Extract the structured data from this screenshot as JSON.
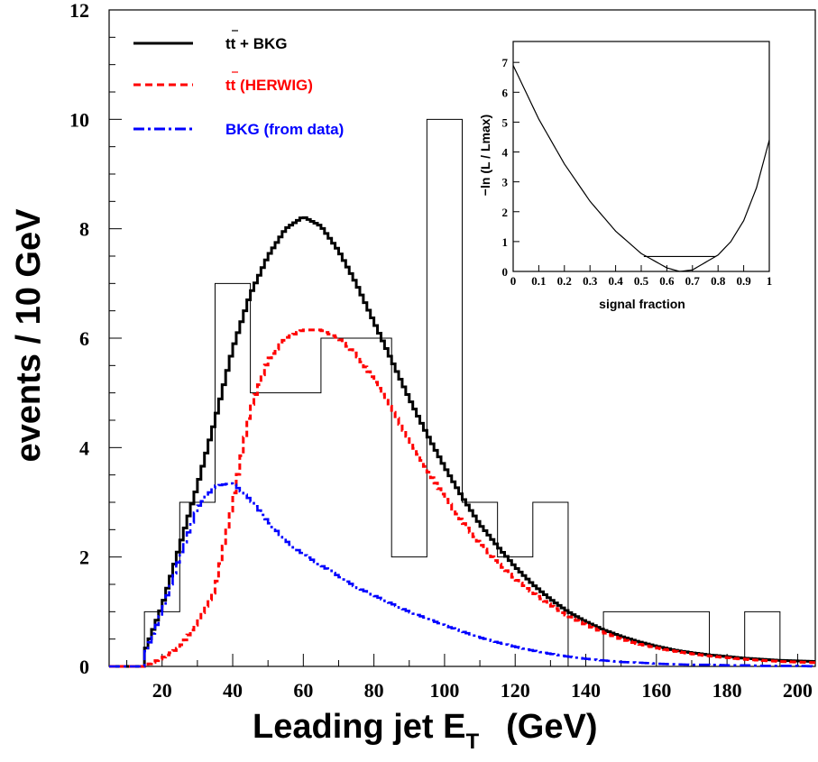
{
  "chart_data": [
    {
      "type": "line",
      "title": "",
      "xlabel": "Leading jet E",
      "xlabel_sub": "T",
      "xlabel_unit": "(GeV)",
      "ylabel": "events / 10 GeV",
      "xlim": [
        5,
        205
      ],
      "ylim": [
        0,
        12
      ],
      "xticks": [
        "20",
        "40",
        "60",
        "80",
        "100",
        "120",
        "140",
        "160",
        "180",
        "200"
      ],
      "yticks": [
        "0",
        "2",
        "4",
        "6",
        "8",
        "10",
        "12"
      ],
      "legend_position": "top-left",
      "histogram": {
        "edges": [
          15,
          25,
          35,
          45,
          55,
          65,
          75,
          85,
          95,
          105,
          115,
          125,
          135,
          145,
          155,
          165,
          175,
          185,
          195
        ],
        "counts": [
          1,
          3,
          7,
          5,
          5,
          6,
          6,
          2,
          10,
          3,
          2,
          3,
          0,
          1,
          1,
          1,
          0,
          1
        ]
      },
      "x": [
        15,
        20,
        25,
        30,
        35,
        40,
        45,
        50,
        55,
        60,
        65,
        70,
        75,
        80,
        85,
        90,
        95,
        100,
        105,
        110,
        115,
        120,
        125,
        130,
        135,
        140,
        145,
        150,
        155,
        160,
        165,
        170,
        175,
        180,
        185,
        190,
        195,
        200,
        205
      ],
      "series": [
        {
          "name": "tt + BKG",
          "color": "#000000",
          "style": "solid",
          "values": [
            0.25,
            1.1,
            2.2,
            3.3,
            4.5,
            5.8,
            6.8,
            7.5,
            8.0,
            8.22,
            8.05,
            7.6,
            7.0,
            6.3,
            5.6,
            4.9,
            4.25,
            3.65,
            3.1,
            2.6,
            2.2,
            1.82,
            1.5,
            1.23,
            1.0,
            0.82,
            0.67,
            0.55,
            0.45,
            0.37,
            0.3,
            0.25,
            0.21,
            0.18,
            0.15,
            0.13,
            0.11,
            0.1,
            0.09
          ]
        },
        {
          "name": "tt (HERWIG)",
          "color": "#ff0000",
          "style": "dashed",
          "values": [
            0.0,
            0.15,
            0.35,
            0.8,
            1.4,
            3.0,
            4.7,
            5.6,
            6.0,
            6.15,
            6.15,
            6.0,
            5.7,
            5.25,
            4.7,
            4.15,
            3.6,
            3.1,
            2.65,
            2.25,
            1.9,
            1.6,
            1.35,
            1.12,
            0.92,
            0.76,
            0.62,
            0.5,
            0.41,
            0.34,
            0.28,
            0.23,
            0.19,
            0.16,
            0.13,
            0.11,
            0.09,
            0.08,
            0.07
          ]
        },
        {
          "name": "BKG  (from data)",
          "color": "#0000ff",
          "style": "dash-dot",
          "values": [
            0.2,
            1.0,
            2.0,
            2.9,
            3.3,
            3.35,
            3.05,
            2.65,
            2.3,
            2.05,
            1.85,
            1.65,
            1.45,
            1.3,
            1.15,
            1.0,
            0.88,
            0.75,
            0.64,
            0.53,
            0.44,
            0.36,
            0.29,
            0.23,
            0.18,
            0.14,
            0.11,
            0.08,
            0.07,
            0.05,
            0.04,
            0.03,
            0.03,
            0.02,
            0.02,
            0.01,
            0.01,
            0.01,
            0.0
          ]
        }
      ]
    },
    {
      "type": "line",
      "xlabel": "signal fraction",
      "ylabel": "−ln (L / Lmax)",
      "xlim": [
        0,
        1
      ],
      "ylim": [
        0,
        7.7
      ],
      "xticks": [
        "0",
        "0.1",
        "0.2",
        "0.3",
        "0.4",
        "0.5",
        "0.6",
        "0.7",
        "0.8",
        "0.9",
        "1"
      ],
      "yticks": [
        "0",
        "1",
        "2",
        "3",
        "4",
        "5",
        "6",
        "7"
      ],
      "series": [
        {
          "name": "",
          "x": [
            0.0,
            0.1,
            0.2,
            0.3,
            0.4,
            0.5,
            0.6,
            0.65,
            0.7,
            0.75,
            0.8,
            0.85,
            0.9,
            0.95,
            1.0
          ],
          "values": [
            6.9,
            5.1,
            3.6,
            2.35,
            1.35,
            0.6,
            0.12,
            0.0,
            0.05,
            0.3,
            0.55,
            1.0,
            1.7,
            2.8,
            4.4
          ]
        }
      ],
      "interval_line": {
        "y": 0.5,
        "x_range": [
          0.51,
          0.79
        ]
      }
    }
  ]
}
